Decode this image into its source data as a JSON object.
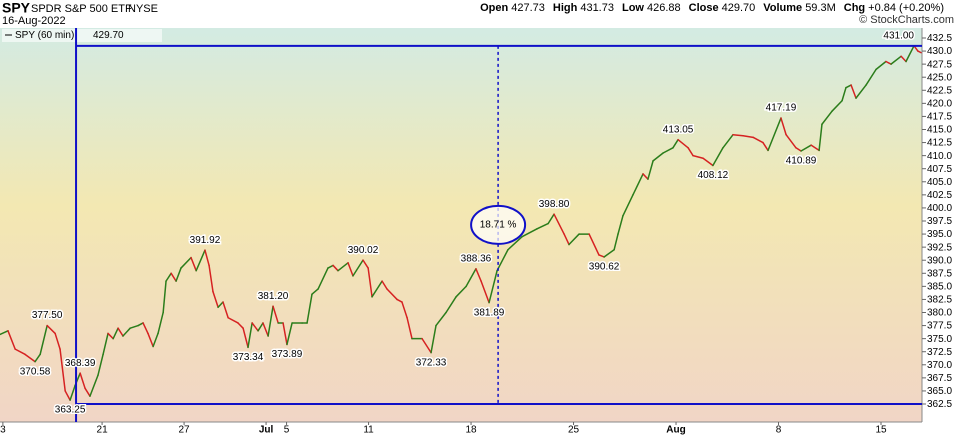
{
  "header": {
    "symbol": "SPY",
    "name": "SPDR S&P 500 ETF",
    "exchange": "NYSE",
    "date": "16-Aug-2022",
    "copyright": "© StockCharts.com",
    "quote": [
      {
        "label": "Open",
        "value": "427.73"
      },
      {
        "label": "High",
        "value": "431.73"
      },
      {
        "label": "Low",
        "value": "426.88"
      },
      {
        "label": "Close",
        "value": "429.70"
      },
      {
        "label": "Volume",
        "value": "59.3M"
      },
      {
        "label": "Chg",
        "value": "+0.84 (+0.20%)"
      }
    ]
  },
  "chart_data": {
    "type": "line",
    "legend_value": "429.70",
    "up_color": "#2b7d1b",
    "down_color": "#d62222",
    "x": [
      -4.98,
      -4.59,
      -4.24,
      -3.76,
      -3.27,
      -3.02,
      -2.68,
      -2.29,
      -2.05,
      -1.8,
      -1.56,
      -1.32,
      -1.07,
      -0.83,
      -0.59,
      -0.2,
      0.05,
      0.29,
      0.54,
      0.78,
      1.02,
      1.37,
      1.76,
      2.0,
      2.24,
      2.49,
      2.73,
      2.98,
      3.12,
      3.37,
      3.61,
      3.85,
      4.34,
      4.59,
      5.02,
      5.22,
      5.41,
      5.66,
      5.9,
      6.15,
      6.63,
      6.88,
      7.12,
      7.32,
      7.61,
      7.85,
      8.1,
      8.34,
      8.59,
      8.83,
      9.02,
      9.27,
      9.76,
      10.0,
      10.24,
      10.54,
      11.02,
      11.27,
      11.51,
      12.0,
      12.24,
      12.73,
      12.98,
      13.17,
      13.66,
      13.9,
      14.39,
      14.63,
      14.88,
      15.12,
      15.61,
      16.05,
      16.29,
      16.78,
      17.27,
      17.76,
      18.24,
      18.49,
      18.88,
      19.27,
      19.8,
      20.49,
      21.22,
      21.76,
      22.05,
      22.54,
      22.78,
      23.27,
      23.76,
      24.24,
      24.49,
      24.98,
      25.17,
      25.41,
      25.9,
      26.39,
      26.63,
      26.88,
      27.37,
      27.85,
      28.1,
      28.59,
      28.83,
      29.32,
      29.8,
      30.29,
      30.78,
      31.27,
      31.76,
      32.24,
      32.49,
      33.12,
      33.37,
      33.85,
      34.1,
      34.59,
      34.98,
      35.12,
      35.61,
      36.1,
      36.29,
      36.54,
      36.78,
      37.27,
      37.76,
      38.24,
      38.49,
      38.98,
      39.22,
      39.61,
      39.8,
      39.95
    ],
    "series": [
      {
        "name": "SPY (60 min)",
        "values": [
          375.8,
          376.5,
          373,
          372,
          370.6,
          372,
          377.5,
          376,
          373,
          365,
          363.25,
          366,
          368.4,
          365.5,
          364,
          368,
          372,
          376,
          375,
          377,
          375.5,
          377,
          377.5,
          378,
          376,
          373.5,
          376,
          380,
          386,
          387.5,
          386,
          388.5,
          390.5,
          388,
          391.92,
          389,
          384,
          381,
          382,
          379,
          378,
          377,
          373.34,
          378,
          376.5,
          378,
          375.5,
          381.2,
          378,
          378,
          373.89,
          378,
          378,
          378,
          383.5,
          384.5,
          388.5,
          389,
          388,
          389.5,
          387,
          390.02,
          388.5,
          383,
          386,
          384.5,
          382.5,
          382,
          379,
          375,
          375,
          372.33,
          377.5,
          380,
          383,
          385,
          388.36,
          386,
          381.89,
          388,
          392,
          394.5,
          396,
          397,
          398.8,
          395,
          393,
          395,
          395,
          391,
          390.62,
          392,
          395,
          398.5,
          402.5,
          406.5,
          405.5,
          409,
          410.5,
          411.5,
          413.05,
          411.5,
          410,
          409.5,
          408.12,
          411.5,
          414,
          413.8,
          413.5,
          412.5,
          411,
          417.19,
          414,
          411.5,
          410.89,
          412,
          411,
          416,
          418.5,
          420.5,
          423,
          423.5,
          421,
          423.5,
          426.5,
          428,
          427.5,
          429,
          428,
          431,
          430,
          429.7
        ]
      }
    ],
    "point_labels": [
      {
        "x": -2.68,
        "value": 377.5,
        "label": "377.50",
        "position": "above"
      },
      {
        "x": -3.27,
        "value": 370.6,
        "label": "370.58",
        "position": "below"
      },
      {
        "x": -1.07,
        "value": 368.4,
        "label": "368.39",
        "position": "above"
      },
      {
        "x": -1.56,
        "value": 363.25,
        "label": "363.25",
        "position": "below"
      },
      {
        "x": 5.02,
        "value": 391.92,
        "label": "391.92",
        "position": "above"
      },
      {
        "x": 7.12,
        "value": 373.34,
        "label": "373.34",
        "position": "below"
      },
      {
        "x": 8.34,
        "value": 381.2,
        "label": "381.20",
        "position": "above"
      },
      {
        "x": 9.02,
        "value": 373.89,
        "label": "373.89",
        "position": "below"
      },
      {
        "x": 12.73,
        "value": 390.02,
        "label": "390.02",
        "position": "above"
      },
      {
        "x": 16.05,
        "value": 372.33,
        "label": "372.33",
        "position": "below"
      },
      {
        "x": 18.24,
        "value": 388.36,
        "label": "388.36",
        "position": "above"
      },
      {
        "x": 18.88,
        "value": 381.89,
        "label": "381.89",
        "position": "below"
      },
      {
        "x": 22.05,
        "value": 398.8,
        "label": "398.80",
        "position": "above"
      },
      {
        "x": 24.49,
        "value": 390.62,
        "label": "390.62",
        "position": "below"
      },
      {
        "x": 28.1,
        "value": 413.05,
        "label": "413.05",
        "position": "above"
      },
      {
        "x": 29.8,
        "value": 408.12,
        "label": "408.12",
        "position": "below"
      },
      {
        "x": 33.12,
        "value": 417.19,
        "label": "417.19",
        "position": "above"
      },
      {
        "x": 34.1,
        "value": 410.89,
        "label": "410.89",
        "position": "below"
      },
      {
        "x": 39.61,
        "value": 431.0,
        "label": "431.00",
        "position": "above"
      }
    ],
    "measure": {
      "x_start": -1.27,
      "x_mid": 19.32,
      "low": 362.5,
      "high": 431.0,
      "label": "18.71 %",
      "color": "#1010c8"
    },
    "xlim": [
      -4.98,
      40.0
    ],
    "ylim": [
      359.06,
      434.41
    ],
    "xticks": [
      {
        "value": -4.84,
        "label": "3"
      },
      {
        "value": 0,
        "label": "21"
      },
      {
        "value": 4,
        "label": "27"
      },
      {
        "value": 8,
        "label": "Jul"
      },
      {
        "value": 9,
        "label": "5"
      },
      {
        "value": 13,
        "label": "11"
      },
      {
        "value": 18,
        "label": "18"
      },
      {
        "value": 23,
        "label": "25"
      },
      {
        "value": 28,
        "label": "Aug"
      },
      {
        "value": 33,
        "label": "8"
      },
      {
        "value": 38,
        "label": "15"
      }
    ],
    "yticks": [
      362.5,
      {
        "value": 365,
        "label": "365.0"
      },
      367.5,
      {
        "value": 370,
        "label": "370.0"
      },
      372.5,
      {
        "value": 375,
        "label": "375.0"
      },
      377.5,
      {
        "value": 380,
        "label": "380.0"
      },
      382.5,
      {
        "value": 385,
        "label": "385.0"
      },
      387.5,
      {
        "value": 390,
        "label": "390.0"
      },
      392.5,
      {
        "value": 395,
        "label": "395.0"
      },
      397.5,
      {
        "value": 400,
        "label": "400.0"
      },
      402.5,
      {
        "value": 405,
        "label": "405.0"
      },
      407.5,
      {
        "value": 410,
        "label": "410.0"
      },
      412.5,
      {
        "value": 415,
        "label": "415.0"
      },
      417.5,
      {
        "value": 420,
        "label": "420.0"
      },
      422.5,
      {
        "value": 425,
        "label": "425.0"
      },
      427.5,
      {
        "value": 430,
        "label": "430.0"
      },
      432.5
    ]
  }
}
